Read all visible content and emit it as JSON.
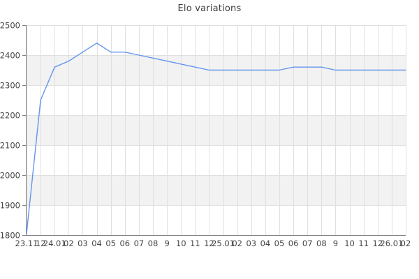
{
  "chart_data": {
    "type": "line",
    "title": "Elo variations",
    "x_labels": [
      "23.11",
      "12",
      "24.01",
      "02",
      "03",
      "04",
      "05",
      "06",
      "07",
      "08",
      "9",
      "10",
      "11",
      "12",
      "25.01",
      "02",
      "03",
      "04",
      "05",
      "06",
      "07",
      "08",
      "9",
      "10",
      "11",
      "12",
      "26.01",
      "02"
    ],
    "series": [
      {
        "name": "Elo",
        "values": [
          1805,
          2250,
          2360,
          2380,
          2410,
          2440,
          2410,
          2410,
          2400,
          2390,
          2380,
          2370,
          2360,
          2350,
          2350,
          2350,
          2350,
          2350,
          2350,
          2360,
          2360,
          2360,
          2350,
          2350,
          2350,
          2350,
          2350,
          2350
        ]
      }
    ],
    "ylim": [
      1800,
      2500
    ],
    "yticks": [
      2500,
      2400,
      2300,
      2200,
      2100,
      2000,
      1900,
      1800
    ],
    "xlabel": "",
    "ylabel": "",
    "grid": true,
    "legend": "none",
    "colors": {
      "line": "#6495ed",
      "band_alt": "#f2f2f2",
      "gridline": "#e0e0e0",
      "axis": "#7f7f7f",
      "label": "#444444",
      "title": "#3c3c3c",
      "background": "#ffffff"
    }
  }
}
